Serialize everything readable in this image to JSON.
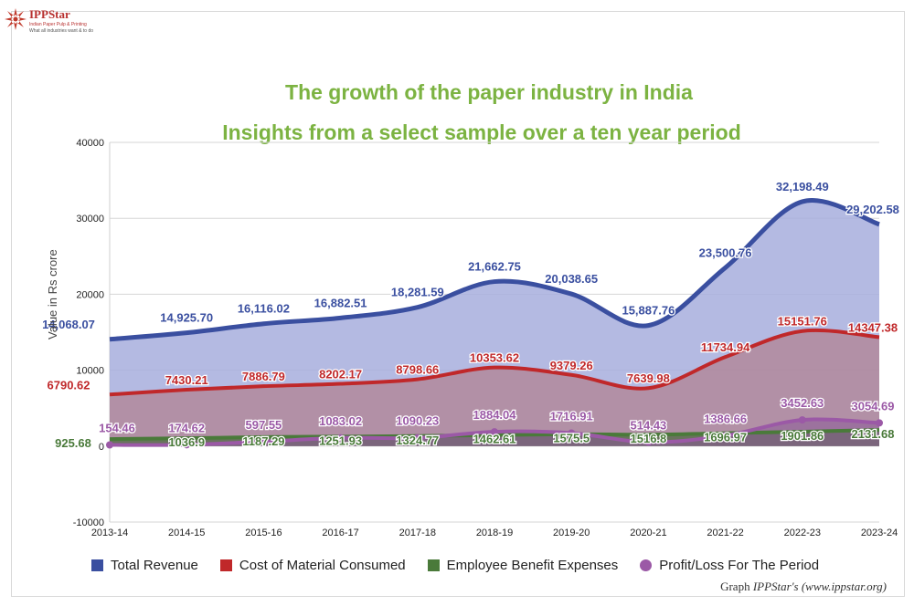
{
  "logo": {
    "name": "IPPStar",
    "tagline1": "Indian Paper Pulp & Printing",
    "tagline2": "What all industries want & to do"
  },
  "chart_data": {
    "type": "area",
    "title": "The growth of the paper industry in India",
    "subtitle": "Insights from a select sample over a ten year period",
    "ylabel": "Value in Rs crore",
    "xlabel": "",
    "ylim": [
      -10000,
      40000
    ],
    "yticks": [
      -10000,
      0,
      10000,
      20000,
      30000,
      40000
    ],
    "ytick_labels": [
      "-10000",
      "0",
      "10000",
      "20000",
      "30000",
      "40000"
    ],
    "categories": [
      "2013-14",
      "2014-15",
      "2015-16",
      "2016-17",
      "2017-18",
      "2018-19",
      "2019-20",
      "2020-21",
      "2021-22",
      "2022-23",
      "2023-24"
    ],
    "grid": true,
    "legend_position": "bottom",
    "series": [
      {
        "name": "Total Revenue",
        "color": "#3a4fa0",
        "fill": "#a7aedd",
        "values": [
          14068.07,
          14925.7,
          16116.02,
          16882.51,
          18281.59,
          21662.75,
          20038.65,
          15887.76,
          23500.76,
          32198.49,
          29202.58
        ],
        "labels": [
          "14,068.07",
          "14,925.70",
          "16,116.02",
          "16,882.51",
          "18,281.59",
          "21,662.75",
          "20,038.65",
          "15,887.76",
          "23,500.76",
          "32,198.49",
          "29,202.58"
        ]
      },
      {
        "name": "Cost of Material Consumed",
        "color": "#c0282a",
        "fill": "#b07a86",
        "values": [
          6790.62,
          7430.21,
          7886.79,
          8202.17,
          8798.66,
          10353.62,
          9379.26,
          7639.98,
          11734.94,
          15151.76,
          14347.38
        ],
        "labels": [
          "6790.62",
          "7430.21",
          "7886.79",
          "8202.17",
          "8798.66",
          "10353.62",
          "9379.26",
          "7639.98",
          "11734.94",
          "15151.76",
          "14347.38"
        ]
      },
      {
        "name": "Employee Benefit Expenses",
        "color": "#4a7a3a",
        "fill": "#556b4a",
        "values": [
          925.68,
          1036.9,
          1187.29,
          1251.93,
          1324.77,
          1462.61,
          1575.5,
          1516.8,
          1696.97,
          1901.86,
          2131.68
        ],
        "labels": [
          "925.68",
          "1036.9",
          "1187.29",
          "1251.93",
          "1324.77",
          "1462.61",
          "1575.5",
          "1516.8",
          "1696.97",
          "1901.86",
          "2131.68"
        ]
      },
      {
        "name": "Profit/Loss For The Period",
        "color": "#9b59a6",
        "fill": "#8a5a98",
        "values": [
          154.46,
          174.62,
          597.55,
          1083.02,
          1090.23,
          1884.04,
          1716.91,
          514.43,
          1386.66,
          3452.63,
          3054.69
        ],
        "labels": [
          "154.46",
          "174.62",
          "597.55",
          "1083.02",
          "1090.23",
          "1884.04",
          "1716.91",
          "514.43",
          "1386.66",
          "3452.63",
          "3054.69"
        ]
      }
    ]
  },
  "credit": {
    "prefix": "Graph ",
    "source": "IPPStar's (www.ippstar.org)"
  }
}
